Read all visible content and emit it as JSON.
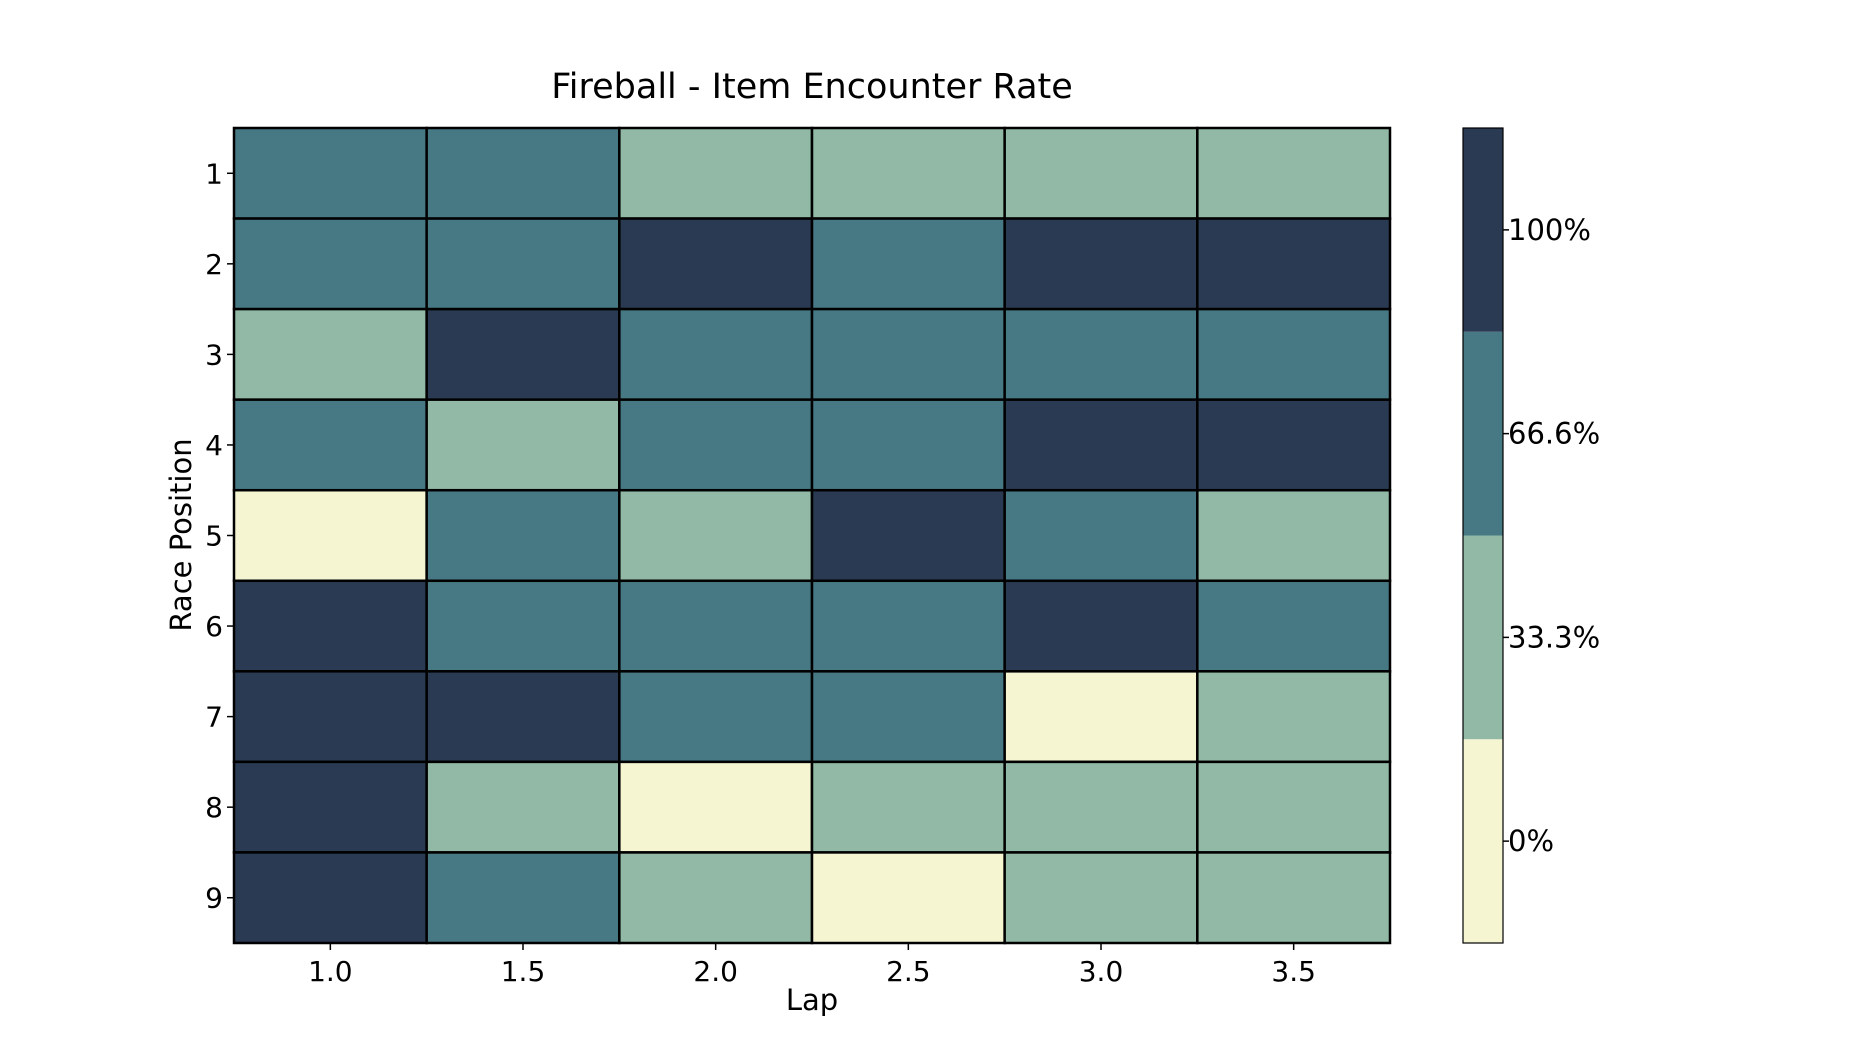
{
  "chart_data": {
    "type": "heatmap",
    "title": "Fireball - Item Encounter Rate",
    "xlabel": "Lap",
    "ylabel": "Race Position",
    "x_categories": [
      "1.0",
      "1.5",
      "2.0",
      "2.5",
      "3.0",
      "3.5"
    ],
    "y_categories": [
      "1",
      "2",
      "3",
      "4",
      "5",
      "6",
      "7",
      "8",
      "9"
    ],
    "values": [
      [
        66.6,
        66.6,
        33.3,
        33.3,
        33.3,
        33.3
      ],
      [
        66.6,
        66.6,
        100,
        66.6,
        100,
        100
      ],
      [
        33.3,
        100,
        66.6,
        66.6,
        66.6,
        66.6
      ],
      [
        66.6,
        33.3,
        66.6,
        66.6,
        100,
        100
      ],
      [
        0,
        66.6,
        33.3,
        100,
        66.6,
        33.3
      ],
      [
        100,
        66.6,
        66.6,
        66.6,
        100,
        66.6
      ],
      [
        100,
        100,
        66.6,
        66.6,
        0,
        33.3
      ],
      [
        100,
        33.3,
        0,
        33.3,
        33.3,
        33.3
      ],
      [
        100,
        66.6,
        33.3,
        0,
        33.3,
        33.3
      ]
    ],
    "colorbar": {
      "levels": [
        0,
        33.3,
        66.6,
        100
      ],
      "tick_labels": [
        "0%",
        "33.3%",
        "66.6%",
        "100%"
      ],
      "colors": [
        "#f5f5d2",
        "#91b9a5",
        "#477984",
        "#2a3a52"
      ]
    },
    "grid": false,
    "cell_border_color": "#000000"
  }
}
